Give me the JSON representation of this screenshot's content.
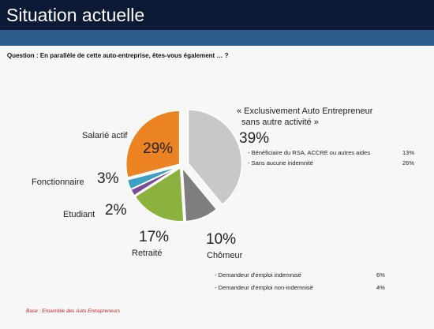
{
  "header": {
    "title": "Situation actuelle",
    "question": "Question : En parallèle de cette auto-entreprise, êtes-vous également … ?"
  },
  "colors": {
    "title_bar": "#0d1a36",
    "band": "#2b5c8a",
    "salarie": "#ec8323",
    "fonctionnaire": "#3aa1c3",
    "etudiant": "#7b4c9a",
    "retraite": "#8bb23e",
    "chomeur": "#7e7e7e",
    "exclusif": "#c8c8c8",
    "base_text": "#cc2222"
  },
  "chart_data": {
    "type": "pie",
    "slices": [
      {
        "name": "« Exclusivement Auto Entrepreneur sans autre activité »",
        "value": 39,
        "label": "39%"
      },
      {
        "name": "Chômeur",
        "value": 10,
        "label": "10%"
      },
      {
        "name": "Retraité",
        "value": 17,
        "label": "17%"
      },
      {
        "name": "Etudiant",
        "value": 2,
        "label": "2%"
      },
      {
        "name": "Fonctionnaire",
        "value": 3,
        "label": "3%"
      },
      {
        "name": "Salarié actif",
        "value": 29,
        "label": "29%"
      }
    ],
    "exclusif_detail": [
      {
        "label": "- Bénéficiaire du RSA, ACCRE ou autres aides",
        "value": "13%"
      },
      {
        "label": "- Sans aucune indemnité",
        "value": "26%"
      }
    ],
    "chomeur_detail": [
      {
        "label": "- Demandeur d'emploi indemnisé",
        "value": "6%"
      },
      {
        "label": "- Demandeur d'emploi non-indemnisé",
        "value": "4%"
      }
    ]
  },
  "labels": {
    "exclusif_line1": "« Exclusivement Auto Entrepreneur",
    "exclusif_line2": "sans autre activité »",
    "salarie": "Salarié actif",
    "fonctionnaire": "Fonctionnaire",
    "etudiant": "Etudiant",
    "retraite": "Retraité",
    "chomeur": "Chômeur"
  },
  "footer": {
    "base": "Base : Ensemble des Auto Entrepreneurs"
  }
}
